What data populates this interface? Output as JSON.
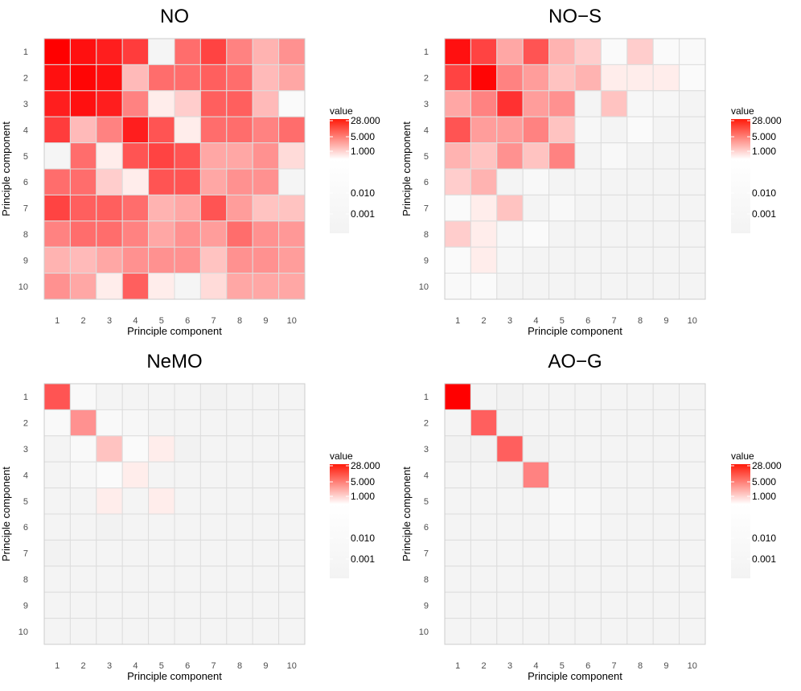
{
  "chart_data": [
    {
      "type": "heatmap",
      "title": "NO",
      "xlabel": "Principle component",
      "ylabel": "Principle component",
      "x_ticks": [
        "1",
        "2",
        "3",
        "4",
        "5",
        "6",
        "7",
        "8",
        "9",
        "10"
      ],
      "y_ticks": [
        "1",
        "2",
        "3",
        "4",
        "5",
        "6",
        "7",
        "8",
        "9",
        "10"
      ],
      "legend": {
        "title": "value",
        "ticks": [
          "28.000",
          "5.000",
          "1.000",
          "0.010",
          "0.001"
        ]
      },
      "values": [
        [
          28,
          20,
          15,
          8,
          0.01,
          3,
          7,
          2,
          0.8,
          1.5
        ],
        [
          20,
          25,
          20,
          0.7,
          3,
          3,
          4,
          3,
          0.7,
          1
        ],
        [
          15,
          20,
          15,
          2,
          0.3,
          0.5,
          4,
          4,
          0.7,
          0.2
        ],
        [
          8,
          0.7,
          2,
          15,
          5,
          0.3,
          3,
          3,
          2,
          3
        ],
        [
          0.01,
          3,
          0.3,
          5,
          7,
          5,
          1,
          1,
          1.5,
          0.4
        ],
        [
          3,
          3,
          0.5,
          0.3,
          5,
          5,
          1,
          1.5,
          1.5,
          0.01
        ],
        [
          7,
          4,
          4,
          3,
          0.8,
          1,
          5,
          1.2,
          0.6,
          0.6
        ],
        [
          2,
          3,
          3,
          2,
          1,
          1.5,
          1.2,
          3,
          1.5,
          1.3
        ],
        [
          0.8,
          0.7,
          1,
          1.5,
          1.5,
          1.5,
          0.6,
          1.5,
          1.5,
          1.2
        ],
        [
          1.5,
          1,
          0.3,
          4,
          0.3,
          0.01,
          0.4,
          1,
          1,
          1
        ]
      ]
    },
    {
      "type": "heatmap",
      "title": "NO−S",
      "xlabel": "Principle component",
      "ylabel": "Principle component",
      "x_ticks": [
        "1",
        "2",
        "3",
        "4",
        "5",
        "6",
        "7",
        "8",
        "9",
        "10"
      ],
      "y_ticks": [
        "1",
        "2",
        "3",
        "4",
        "5",
        "6",
        "7",
        "8",
        "9",
        "10"
      ],
      "legend": {
        "title": "value",
        "ticks": [
          "28.000",
          "5.000",
          "1.000",
          "0.010",
          "0.001"
        ]
      },
      "values": [
        [
          20,
          7,
          1,
          5,
          0.8,
          0.5,
          0.15,
          0.5,
          0.2,
          0.07
        ],
        [
          7,
          25,
          2,
          1.2,
          0.6,
          0.8,
          0.3,
          0.3,
          0.3,
          0.2
        ],
        [
          1,
          2,
          10,
          1.2,
          1.5,
          0.005,
          0.6,
          0.03,
          0.015,
          0.005
        ],
        [
          5,
          1.2,
          1.2,
          2,
          0.6,
          0.03,
          0.005,
          0.15,
          0.005,
          0.005
        ],
        [
          0.8,
          0.6,
          1.5,
          0.6,
          2,
          0.005,
          0.05,
          0.005,
          0.005,
          0.005
        ],
        [
          0.5,
          0.8,
          0.005,
          0.05,
          0.005,
          0.01,
          0.005,
          0.005,
          0.005,
          0.005
        ],
        [
          0.15,
          0.3,
          0.6,
          0.005,
          0.05,
          0.005,
          0.005,
          0.005,
          0.005,
          0.005
        ],
        [
          0.5,
          0.3,
          0.03,
          0.15,
          0.005,
          0.005,
          0.005,
          0.005,
          0.005,
          0.005
        ],
        [
          0.2,
          0.3,
          0.015,
          0.005,
          0.005,
          0.005,
          0.005,
          0.005,
          0.005,
          0.005
        ],
        [
          0.07,
          0.2,
          0.005,
          0.005,
          0.005,
          0.005,
          0.005,
          0.005,
          0.005,
          0.005
        ]
      ]
    },
    {
      "type": "heatmap",
      "title": "NeMO",
      "xlabel": "Principle component",
      "ylabel": "Principle component",
      "x_ticks": [
        "1",
        "2",
        "3",
        "4",
        "5",
        "6",
        "7",
        "8",
        "9",
        "10"
      ],
      "y_ticks": [
        "1",
        "2",
        "3",
        "4",
        "5",
        "6",
        "7",
        "8",
        "9",
        "10"
      ],
      "legend": {
        "title": "value",
        "ticks": [
          "28.000",
          "5.000",
          "1.000",
          "0.010",
          "0.001"
        ]
      },
      "values": [
        [
          5,
          0.07,
          0.005,
          0.005,
          0.005,
          0.005,
          0.002,
          0.005,
          0.005,
          0.005
        ],
        [
          0.07,
          1.5,
          0.07,
          0.03,
          0.005,
          0.005,
          0.005,
          0.005,
          0.005,
          0.005
        ],
        [
          0.005,
          0.07,
          0.6,
          0.15,
          0.3,
          0.002,
          0.005,
          0.005,
          0.005,
          0.005
        ],
        [
          0.005,
          0.03,
          0.15,
          0.3,
          0.005,
          0.005,
          0.005,
          0.005,
          0.005,
          0.005
        ],
        [
          0.005,
          0.005,
          0.3,
          0.005,
          0.3,
          0.005,
          0.005,
          0.005,
          0.005,
          0.005
        ],
        [
          0.005,
          0.005,
          0.002,
          0.005,
          0.005,
          0.005,
          0.005,
          0.005,
          0.005,
          0.005
        ],
        [
          0.002,
          0.005,
          0.005,
          0.005,
          0.005,
          0.005,
          0.005,
          0.005,
          0.005,
          0.005
        ],
        [
          0.005,
          0.005,
          0.005,
          0.005,
          0.005,
          0.005,
          0.005,
          0.005,
          0.005,
          0.005
        ],
        [
          0.005,
          0.005,
          0.005,
          0.005,
          0.005,
          0.005,
          0.005,
          0.005,
          0.005,
          0.005
        ],
        [
          0.005,
          0.005,
          0.005,
          0.005,
          0.005,
          0.005,
          0.005,
          0.005,
          0.005,
          0.005
        ]
      ]
    },
    {
      "type": "heatmap",
      "title": "AO−G",
      "xlabel": "Principle component",
      "ylabel": "Principle component",
      "x_ticks": [
        "1",
        "2",
        "3",
        "4",
        "5",
        "6",
        "7",
        "8",
        "9",
        "10"
      ],
      "y_ticks": [
        "1",
        "2",
        "3",
        "4",
        "5",
        "6",
        "7",
        "8",
        "9",
        "10"
      ],
      "legend": {
        "title": "value",
        "ticks": [
          "28.000",
          "5.000",
          "1.000",
          "0.010",
          "0.001"
        ]
      },
      "values": [
        [
          28,
          0.005,
          0.002,
          0.005,
          0.005,
          0.005,
          0.005,
          0.005,
          0.005,
          0.005
        ],
        [
          0.005,
          4,
          0.002,
          0.005,
          0.005,
          0.005,
          0.005,
          0.005,
          0.005,
          0.005
        ],
        [
          0.002,
          0.002,
          4,
          0.002,
          0.005,
          0.005,
          0.005,
          0.005,
          0.005,
          0.005
        ],
        [
          0.005,
          0.005,
          0.002,
          2,
          0.005,
          0.005,
          0.005,
          0.005,
          0.005,
          0.005
        ],
        [
          0.005,
          0.005,
          0.005,
          0.005,
          0.05,
          0.03,
          0.005,
          0.005,
          0.005,
          0.005
        ],
        [
          0.005,
          0.005,
          0.005,
          0.005,
          0.03,
          0.03,
          0.005,
          0.005,
          0.005,
          0.005
        ],
        [
          0.005,
          0.005,
          0.005,
          0.005,
          0.005,
          0.005,
          0.005,
          0.005,
          0.005,
          0.005
        ],
        [
          0.005,
          0.005,
          0.005,
          0.005,
          0.005,
          0.005,
          0.005,
          0.005,
          0.005,
          0.005
        ],
        [
          0.005,
          0.005,
          0.005,
          0.005,
          0.005,
          0.005,
          0.005,
          0.005,
          0.005,
          0.005
        ],
        [
          0.005,
          0.005,
          0.005,
          0.005,
          0.005,
          0.005,
          0.005,
          0.005,
          0.005,
          0.005
        ]
      ]
    }
  ],
  "colors": {
    "scale_low": "#f7f7f7",
    "scale_mid": "#eeeeee",
    "scale_high": "#ff0000",
    "cell_border": "#dddddd",
    "panel_border": "#cccccc"
  }
}
